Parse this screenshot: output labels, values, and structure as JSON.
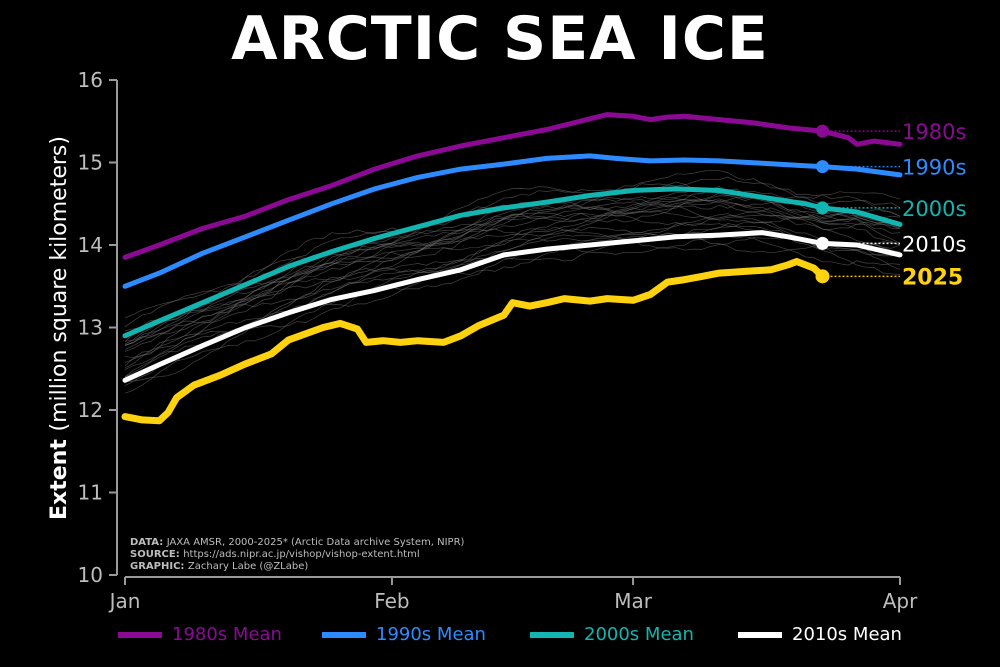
{
  "title": "ARCTIC SEA ICE",
  "credits": {
    "data_key": "DATA:",
    "data_value": "JAXA AMSR, 2000-2025* (Arctic Data archive System, NIPR)",
    "source_key": "SOURCE:",
    "source_value": "https://ads.nipr.ac.jp/vishop/vishop-extent.html",
    "graphic_key": "GRAPHIC:",
    "graphic_value": "Zachary Labe (@ZLabe)"
  },
  "legend": [
    {
      "label": "1980s Mean",
      "color": "#8B0A94"
    },
    {
      "label": "1990s Mean",
      "color": "#2E8BFF"
    },
    {
      "label": "2000s Mean",
      "color": "#12B5B0"
    },
    {
      "label": "2010s Mean",
      "color": "#FFFFFF"
    }
  ],
  "chart_data": {
    "type": "line",
    "title": "ARCTIC SEA ICE",
    "ylabel_bold": "Extent",
    "ylabel_rest": "(million square kilometers)",
    "ylim": [
      10,
      16
    ],
    "yticks": [
      "10",
      "11",
      "12",
      "13",
      "14",
      "15",
      "16"
    ],
    "xlim": [
      1,
      91
    ],
    "xticks": [
      {
        "day": 1,
        "label": "Jan"
      },
      {
        "day": 32,
        "label": "Feb"
      },
      {
        "day": 60,
        "label": "Mar"
      },
      {
        "day": 91,
        "label": "Apr"
      }
    ],
    "grid": false,
    "series": [
      {
        "name": "1980s",
        "label": "1980s",
        "color": "#8B0A94",
        "linewidth": 5,
        "end_day": 82,
        "end_value": 15.38,
        "points": [
          [
            1,
            13.85
          ],
          [
            5,
            14.0
          ],
          [
            10,
            14.2
          ],
          [
            15,
            14.35
          ],
          [
            20,
            14.55
          ],
          [
            25,
            14.72
          ],
          [
            30,
            14.92
          ],
          [
            35,
            15.08
          ],
          [
            40,
            15.2
          ],
          [
            45,
            15.3
          ],
          [
            50,
            15.4
          ],
          [
            55,
            15.53
          ],
          [
            57,
            15.58
          ],
          [
            60,
            15.56
          ],
          [
            62,
            15.52
          ],
          [
            64,
            15.55
          ],
          [
            66,
            15.56
          ],
          [
            70,
            15.52
          ],
          [
            74,
            15.48
          ],
          [
            78,
            15.42
          ],
          [
            82,
            15.38
          ],
          [
            85,
            15.3
          ],
          [
            86,
            15.22
          ],
          [
            88,
            15.26
          ],
          [
            91,
            15.22
          ]
        ]
      },
      {
        "name": "1990s",
        "label": "1990s",
        "color": "#2E8BFF",
        "linewidth": 5,
        "end_day": 82,
        "end_value": 14.95,
        "points": [
          [
            1,
            13.5
          ],
          [
            5,
            13.66
          ],
          [
            10,
            13.9
          ],
          [
            15,
            14.1
          ],
          [
            20,
            14.3
          ],
          [
            25,
            14.5
          ],
          [
            30,
            14.68
          ],
          [
            35,
            14.82
          ],
          [
            40,
            14.92
          ],
          [
            45,
            14.98
          ],
          [
            50,
            15.05
          ],
          [
            55,
            15.08
          ],
          [
            58,
            15.05
          ],
          [
            62,
            15.02
          ],
          [
            66,
            15.03
          ],
          [
            70,
            15.02
          ],
          [
            75,
            14.99
          ],
          [
            80,
            14.96
          ],
          [
            82,
            14.95
          ],
          [
            86,
            14.92
          ],
          [
            91,
            14.85
          ]
        ]
      },
      {
        "name": "2000s",
        "label": "2000s",
        "color": "#12B5B0",
        "linewidth": 5,
        "end_day": 82,
        "end_value": 14.45,
        "points": [
          [
            1,
            12.9
          ],
          [
            5,
            13.08
          ],
          [
            10,
            13.3
          ],
          [
            15,
            13.52
          ],
          [
            20,
            13.74
          ],
          [
            25,
            13.92
          ],
          [
            30,
            14.08
          ],
          [
            35,
            14.22
          ],
          [
            40,
            14.36
          ],
          [
            45,
            14.45
          ],
          [
            50,
            14.52
          ],
          [
            55,
            14.6
          ],
          [
            60,
            14.66
          ],
          [
            65,
            14.68
          ],
          [
            70,
            14.66
          ],
          [
            75,
            14.58
          ],
          [
            80,
            14.5
          ],
          [
            82,
            14.45
          ],
          [
            86,
            14.4
          ],
          [
            91,
            14.25
          ]
        ]
      },
      {
        "name": "2010s",
        "label": "2010s",
        "color": "#FFFFFF",
        "linewidth": 5,
        "end_day": 82,
        "end_value": 14.02,
        "points": [
          [
            1,
            12.36
          ],
          [
            5,
            12.55
          ],
          [
            10,
            12.78
          ],
          [
            15,
            13.0
          ],
          [
            20,
            13.18
          ],
          [
            25,
            13.34
          ],
          [
            30,
            13.45
          ],
          [
            35,
            13.58
          ],
          [
            40,
            13.7
          ],
          [
            45,
            13.88
          ],
          [
            50,
            13.95
          ],
          [
            55,
            14.0
          ],
          [
            60,
            14.05
          ],
          [
            65,
            14.1
          ],
          [
            70,
            14.12
          ],
          [
            75,
            14.15
          ],
          [
            78,
            14.1
          ],
          [
            82,
            14.02
          ],
          [
            86,
            14.0
          ],
          [
            91,
            13.88
          ]
        ]
      },
      {
        "name": "2025",
        "label": "2025",
        "color": "#FFD20F",
        "linewidth": 7,
        "end_day": 82,
        "end_value": 13.62,
        "points": [
          [
            1,
            11.92
          ],
          [
            3,
            11.88
          ],
          [
            5,
            11.87
          ],
          [
            6,
            11.97
          ],
          [
            7,
            12.15
          ],
          [
            9,
            12.3
          ],
          [
            12,
            12.42
          ],
          [
            15,
            12.56
          ],
          [
            18,
            12.68
          ],
          [
            20,
            12.85
          ],
          [
            24,
            13.0
          ],
          [
            26,
            13.05
          ],
          [
            28,
            12.98
          ],
          [
            29,
            12.82
          ],
          [
            31,
            12.84
          ],
          [
            33,
            12.82
          ],
          [
            35,
            12.84
          ],
          [
            38,
            12.82
          ],
          [
            40,
            12.9
          ],
          [
            42,
            13.02
          ],
          [
            45,
            13.15
          ],
          [
            46,
            13.3
          ],
          [
            48,
            13.26
          ],
          [
            50,
            13.3
          ],
          [
            52,
            13.35
          ],
          [
            55,
            13.32
          ],
          [
            57,
            13.35
          ],
          [
            60,
            13.33
          ],
          [
            62,
            13.4
          ],
          [
            64,
            13.55
          ],
          [
            66,
            13.58
          ],
          [
            68,
            13.62
          ],
          [
            70,
            13.66
          ],
          [
            73,
            13.68
          ],
          [
            76,
            13.7
          ],
          [
            78,
            13.76
          ],
          [
            79,
            13.8
          ],
          [
            81,
            13.72
          ],
          [
            82,
            13.62
          ]
        ]
      }
    ],
    "end_dotted_to_day": 91
  }
}
